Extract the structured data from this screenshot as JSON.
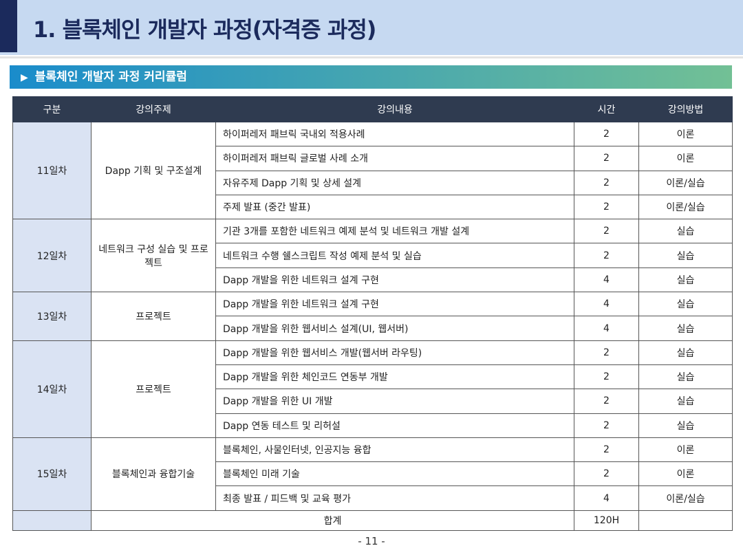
{
  "header": {
    "title": "1. 블록체인 개발자 과정(자격증 과정)"
  },
  "section_title": "블록체인 개발자 과정 커리큘럼",
  "table": {
    "columns": [
      "구분",
      "강의주제",
      "강의내용",
      "시간",
      "강의방법"
    ],
    "groups": [
      {
        "day": "11일차",
        "topic": "Dapp 기획 및 구조설계",
        "rows": [
          {
            "content": "하이퍼레저 패브릭 국내외 적용사례",
            "hours": 2,
            "method": "이론"
          },
          {
            "content": "하이퍼레저 패브릭 글로벌 사례 소개",
            "hours": 2,
            "method": "이론"
          },
          {
            "content": "자유주제 Dapp 기획 및 상세 설계",
            "hours": 2,
            "method": "이론/실습"
          },
          {
            "content": "주제 발표 (중간 발표)",
            "hours": 2,
            "method": "이론/실습"
          }
        ]
      },
      {
        "day": "12일차",
        "topic": "네트워크 구성 실습 및 프로젝트",
        "rows": [
          {
            "content": "기관 3개를 포함한 네트워크 예제 분석 및 네트워크 개발 설계",
            "hours": 2,
            "method": "실습"
          },
          {
            "content": "네트워크 수행 쉘스크립트 작성 예제 분석 및 실습",
            "hours": 2,
            "method": "실습"
          },
          {
            "content": "Dapp 개발을 위한 네트워크 설계 구현",
            "hours": 4,
            "method": "실습"
          }
        ]
      },
      {
        "day": "13일차",
        "topic": "프로젝트",
        "rows": [
          {
            "content": "Dapp 개발을 위한 네트워크 설계 구현",
            "hours": 4,
            "method": "실습"
          },
          {
            "content": "Dapp 개발을 위한 웹서비스 설계(UI, 웹서버)",
            "hours": 4,
            "method": "실습"
          }
        ]
      },
      {
        "day": "14일차",
        "topic": "프로젝트",
        "rows": [
          {
            "content": "Dapp 개발을 위한 웹서비스 개발(웹서버 라우팅)",
            "hours": 2,
            "method": "실습"
          },
          {
            "content": "Dapp 개발을 위한 체인코드 연동부 개발",
            "hours": 2,
            "method": "실습"
          },
          {
            "content": "Dapp 개발을 위한 UI 개발",
            "hours": 2,
            "method": "실습"
          },
          {
            "content": "Dapp 연동 테스트 및 리허설",
            "hours": 2,
            "method": "실습"
          }
        ]
      },
      {
        "day": "15일차",
        "topic": "블록체인과 융합기술",
        "rows": [
          {
            "content": "블록체인, 사물인터넷, 인공지능 융합",
            "hours": 2,
            "method": "이론"
          },
          {
            "content": "블록체인 미래 기술",
            "hours": 2,
            "method": "이론"
          },
          {
            "content": "최종 발표 / 피드백 및 교육 평가",
            "hours": 4,
            "method": "이론/실습"
          }
        ]
      }
    ],
    "total": {
      "label": "합계",
      "hours": "120H"
    }
  },
  "page_number": "- 11 -"
}
